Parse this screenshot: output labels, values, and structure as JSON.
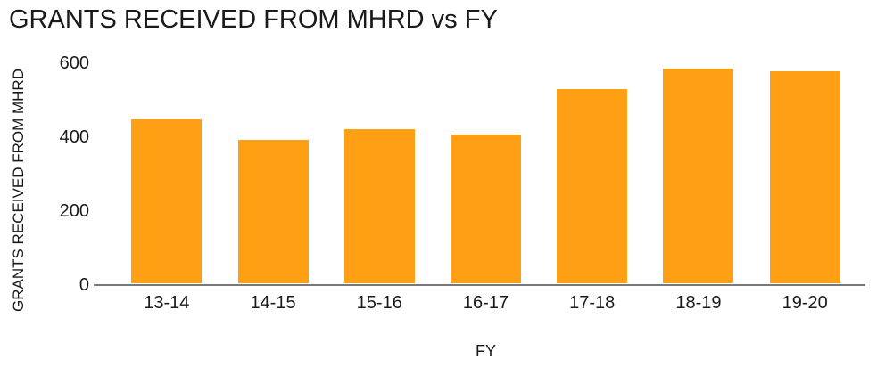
{
  "chart_data": {
    "type": "bar",
    "title": "GRANTS RECEIVED FROM MHRD vs FY",
    "xlabel": "FY",
    "ylabel": "GRANTS RECEIVED FROM MHRD",
    "categories": [
      "13-14",
      "14-15",
      "15-16",
      "16-17",
      "17-18",
      "18-19",
      "19-20"
    ],
    "values": [
      449,
      393,
      422,
      409,
      530,
      586,
      580
    ],
    "yticks": [
      0,
      200,
      400,
      600
    ],
    "ylim": [
      0,
      600
    ],
    "grid": false,
    "legend_position": "none",
    "bar_color": "#FFA014",
    "axis_line_color": "#77787B",
    "text_color": "#1A1A1A"
  }
}
